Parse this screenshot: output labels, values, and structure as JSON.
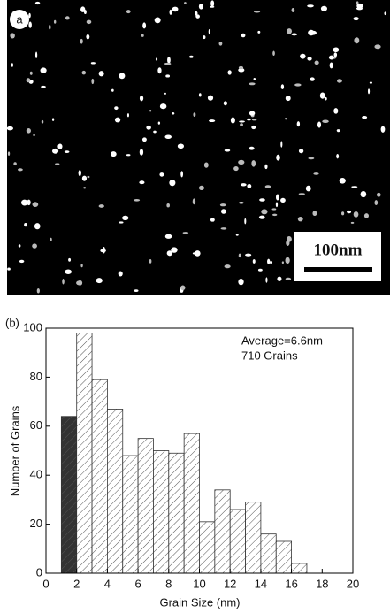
{
  "image_panel": {
    "label": "a",
    "scale_bar": "100nm"
  },
  "chart_data": {
    "type": "histogram",
    "panel_label": "(b)",
    "x_label": "Grain Size (nm)",
    "y_label": "Number of Grains",
    "annotations": [
      "Average=6.6nm",
      "710 Grains"
    ],
    "bins": [
      1,
      2,
      3,
      4,
      5,
      6,
      7,
      8,
      9,
      10,
      11,
      12,
      13,
      14,
      15,
      16,
      17
    ],
    "values": [
      64,
      98,
      79,
      67,
      48,
      55,
      50,
      49,
      57,
      21,
      34,
      26,
      29,
      16,
      13,
      4
    ],
    "colors": [
      "#333333",
      "#ffffff",
      "#ffffff",
      "#ffffff",
      "#ffffff",
      "#ffffff",
      "#ffffff",
      "#ffffff",
      "#ffffff",
      "#ffffff",
      "#ffffff",
      "#ffffff",
      "#ffffff",
      "#ffffff",
      "#ffffff",
      "#ffffff"
    ],
    "xlim": [
      0,
      20
    ],
    "xticks": [
      0,
      2,
      4,
      6,
      8,
      10,
      12,
      14,
      16,
      18,
      20
    ],
    "ylim": [
      0,
      100
    ],
    "yticks": [
      0,
      20,
      40,
      60,
      80,
      100
    ]
  }
}
